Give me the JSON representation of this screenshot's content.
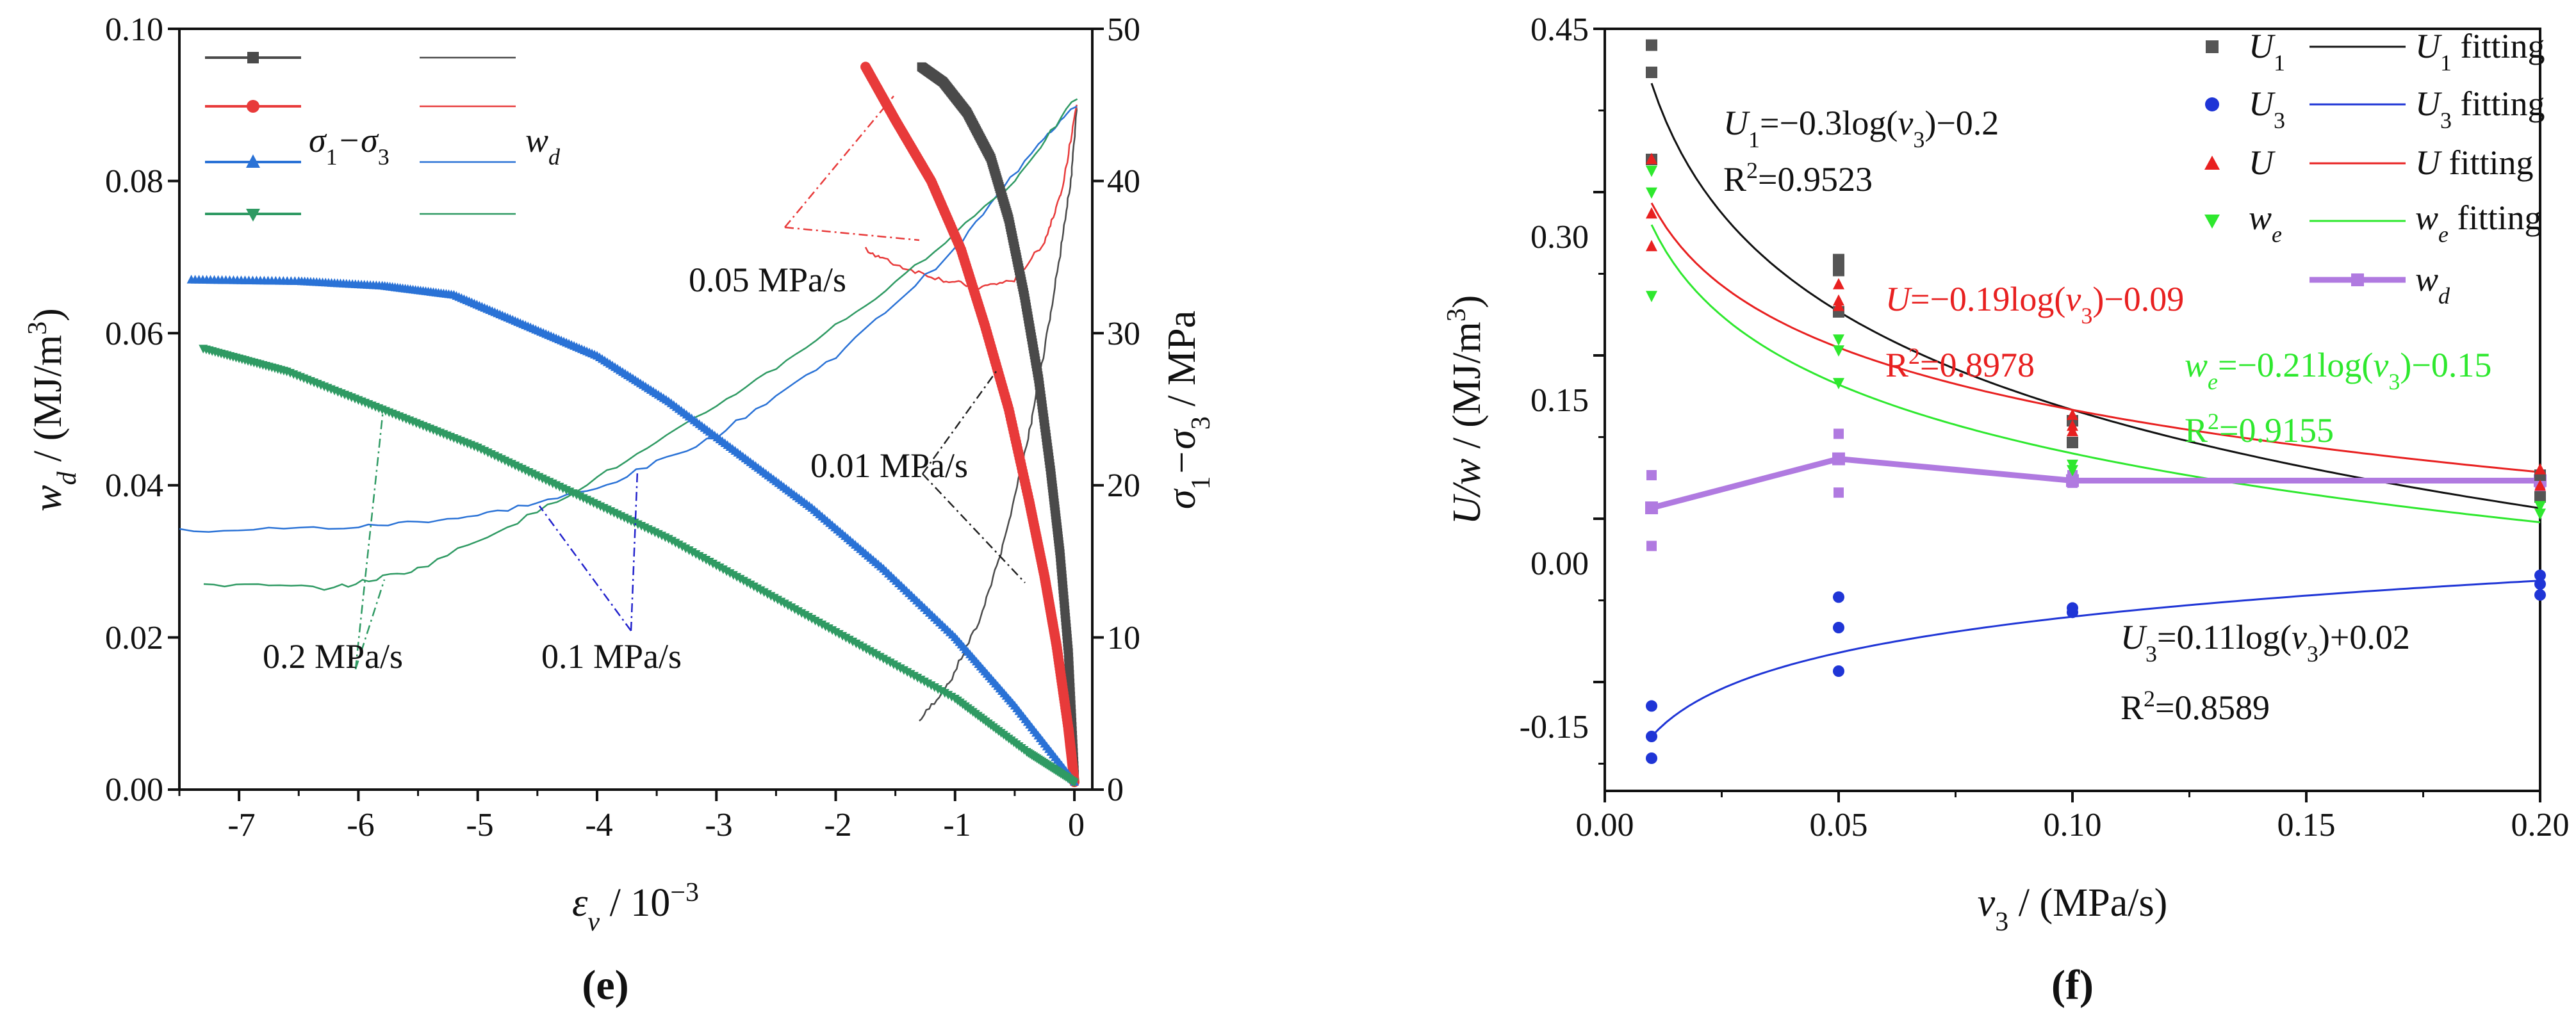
{
  "chart_data": [
    {
      "panel_label": "(e)",
      "type": "scatter",
      "xlabel": "εv / 10−3",
      "xlabel_parts": {
        "symbol": "ε",
        "sub": "v",
        "unit": " / 10",
        "sup": "−3"
      },
      "ylabel_left": "wd / (MJ/m3)",
      "ylabel_left_parts": {
        "symbol": "w",
        "sub": "d",
        "unit": " / (MJ/m",
        "sup": "3",
        "close": ")"
      },
      "ylabel_right": "σ1−σ3 / MPa",
      "ylabel_right_parts": {
        "s1": "σ",
        "sub1": "1",
        "minus": "−σ",
        "sub3": "3",
        "unit": " / MPa"
      },
      "xlim": [
        -7.5,
        0.15
      ],
      "ylim_left": [
        0,
        0.1
      ],
      "ylim_right": [
        0,
        50
      ],
      "xticks": [
        "-7",
        "-6",
        "-5",
        "-4",
        "-3",
        "-2",
        "-1",
        "0"
      ],
      "yticks_left": [
        "0.00",
        "0.02",
        "0.04",
        "0.06",
        "0.08",
        "0.10"
      ],
      "yticks_right": [
        "0",
        "10",
        "20",
        "30",
        "40",
        "50"
      ],
      "legend": {
        "placement": "top-left",
        "col1_label_parts": {
          "s1": "σ",
          "sub1": "1",
          "minus": "−σ",
          "sub3": "3"
        },
        "col2_label_parts": {
          "symbol": "w",
          "sub": "d"
        }
      },
      "annotations": [
        "0.05 MPa/s",
        "0.01 MPa/s",
        "0.2 MPa/s",
        "0.1 MPa/s"
      ],
      "series": [
        {
          "rate": "0.01 MPa/s",
          "color": "#4a4a4a",
          "marker": "square",
          "axis": "right",
          "points": [
            [
              -1.28,
              47.5
            ],
            [
              -1.1,
              46.5
            ],
            [
              -0.9,
              44.5
            ],
            [
              -0.7,
              41.5
            ],
            [
              -0.55,
              37.5
            ],
            [
              -0.42,
              32.5
            ],
            [
              -0.3,
              27
            ],
            [
              -0.2,
              21
            ],
            [
              -0.12,
              15.5
            ],
            [
              -0.05,
              9
            ],
            [
              0.0,
              1
            ]
          ]
        },
        {
          "rate": "0.05 MPa/s",
          "color": "#e83a3a",
          "marker": "circle",
          "axis": "right",
          "points": [
            [
              -1.75,
              47.5
            ],
            [
              -1.5,
              44
            ],
            [
              -1.2,
              40
            ],
            [
              -0.95,
              35.5
            ],
            [
              -0.75,
              30.5
            ],
            [
              -0.55,
              25
            ],
            [
              -0.38,
              19
            ],
            [
              -0.25,
              14
            ],
            [
              -0.15,
              9.5
            ],
            [
              -0.05,
              4
            ],
            [
              0.0,
              0.5
            ]
          ]
        },
        {
          "rate": "0.1 MPa/s",
          "color": "#2a72d6",
          "marker": "triangle-up",
          "axis": "right",
          "points": [
            [
              -7.4,
              33.5
            ],
            [
              -6.5,
              33.4
            ],
            [
              -5.8,
              33.1
            ],
            [
              -5.2,
              32.5
            ],
            [
              -4.6,
              30.5
            ],
            [
              -4.0,
              28.5
            ],
            [
              -3.4,
              25.5
            ],
            [
              -2.8,
              22
            ],
            [
              -2.2,
              18.5
            ],
            [
              -1.6,
              14.5
            ],
            [
              -1.0,
              10
            ],
            [
              -0.5,
              5.5
            ],
            [
              0.0,
              0.5
            ]
          ]
        },
        {
          "rate": "0.2 MPa/s",
          "color": "#2f9a63",
          "marker": "triangle-down",
          "axis": "right",
          "points": [
            [
              -7.3,
              29
            ],
            [
              -6.6,
              27.5
            ],
            [
              -5.8,
              25
            ],
            [
              -5.0,
              22.5
            ],
            [
              -4.2,
              19.5
            ],
            [
              -3.4,
              16.5
            ],
            [
              -2.6,
              13
            ],
            [
              -1.8,
              9.5
            ],
            [
              -1.0,
              6
            ],
            [
              -0.4,
              2.5
            ],
            [
              0.0,
              0.5
            ]
          ]
        },
        {
          "rate": "0.01 MPa/s",
          "color": "#4a4a4a",
          "marker": "none",
          "axis": "left",
          "points": [
            [
              -1.3,
              0.009
            ],
            [
              -1.05,
              0.014
            ],
            [
              -0.8,
              0.022
            ],
            [
              -0.6,
              0.032
            ],
            [
              -0.4,
              0.045
            ],
            [
              -0.25,
              0.058
            ],
            [
              -0.12,
              0.07
            ],
            [
              -0.03,
              0.08
            ],
            [
              0.02,
              0.09
            ]
          ]
        },
        {
          "rate": "0.05 MPa/s",
          "color": "#e83a3a",
          "marker": "none",
          "axis": "left",
          "points": [
            [
              -1.75,
              0.071
            ],
            [
              -1.5,
              0.069
            ],
            [
              -1.1,
              0.067
            ],
            [
              -0.8,
              0.066
            ],
            [
              -0.5,
              0.067
            ],
            [
              -0.25,
              0.072
            ],
            [
              -0.1,
              0.079
            ],
            [
              0.02,
              0.09
            ]
          ]
        },
        {
          "rate": "0.1 MPa/s",
          "color": "#2a72d6",
          "marker": "none",
          "axis": "left",
          "points": [
            [
              -7.5,
              0.034
            ],
            [
              -6.0,
              0.0345
            ],
            [
              -5.0,
              0.036
            ],
            [
              -4.0,
              0.0395
            ],
            [
              -3.0,
              0.0465
            ],
            [
              -2.0,
              0.057
            ],
            [
              -1.0,
              0.071
            ],
            [
              -0.3,
              0.085
            ],
            [
              0.02,
              0.09
            ]
          ]
        },
        {
          "rate": "0.2 MPa/s",
          "color": "#2f9a63",
          "marker": "none",
          "axis": "left",
          "points": [
            [
              -7.3,
              0.027
            ],
            [
              -6.2,
              0.0265
            ],
            [
              -5.5,
              0.029
            ],
            [
              -4.5,
              0.0365
            ],
            [
              -3.5,
              0.0455
            ],
            [
              -2.5,
              0.0555
            ],
            [
              -1.5,
              0.0665
            ],
            [
              -0.5,
              0.08
            ],
            [
              0.02,
              0.091
            ]
          ]
        }
      ]
    },
    {
      "panel_label": "(f)",
      "type": "scatter",
      "xlabel": "v3 / (MPa/s)",
      "xlabel_parts": {
        "symbol": "v",
        "sub": "3",
        "unit": " / (MPa/s)"
      },
      "ylabel": "U/w / (MJ/m3)",
      "ylabel_parts": {
        "symbol": "U/w",
        "unit": " / (MJ/m",
        "sup": "3",
        "close": ")"
      },
      "xlim": [
        0.0,
        0.2
      ],
      "ylim": [
        -0.25,
        0.45
      ],
      "xticks": [
        "0.00",
        "0.05",
        "0.10",
        "0.15",
        "0.20"
      ],
      "yticks": [
        "-0.15",
        "0.00",
        "0.15",
        "0.30",
        "0.45"
      ],
      "legend": {
        "placement": "top-right",
        "entries": [
          {
            "key": "U1",
            "label_parts": {
              "symbol": "U",
              "sub": "1"
            },
            "fit_parts": {
              "symbol": "U",
              "sub": "1",
              "text": " fitting"
            },
            "color": "#555555",
            "marker": "square"
          },
          {
            "key": "U3",
            "label_parts": {
              "symbol": "U",
              "sub": "3"
            },
            "fit_parts": {
              "symbol": "U",
              "sub": "3",
              "text": " fitting"
            },
            "color": "#1f35d6",
            "marker": "circle"
          },
          {
            "key": "U",
            "label_parts": {
              "symbol": "U",
              "sub": ""
            },
            "fit_parts": {
              "symbol": "U",
              "sub": "",
              "text": " fitting"
            },
            "color": "#e82020",
            "marker": "triangle-up"
          },
          {
            "key": "we",
            "label_parts": {
              "symbol": "w",
              "sub": "e"
            },
            "fit_parts": {
              "symbol": "w",
              "sub": "e",
              "text": " fitting"
            },
            "color": "#2ee82e",
            "marker": "triangle-down"
          },
          {
            "key": "wd",
            "label_parts": {
              "symbol": "w",
              "sub": "d"
            },
            "color": "#b07ae0",
            "marker": "square-line"
          }
        ]
      },
      "equations": [
        {
          "key": "U1",
          "color": "#111111",
          "parts": {
            "pre": "U",
            "sub": "1",
            "mid": "=−0.3log(",
            "v": "v",
            "vsub": "3",
            "post": ")−0.2"
          },
          "r2": {
            "r": "R",
            "sup": "2",
            "val": "=0.9523"
          }
        },
        {
          "key": "U",
          "color": "#e82020",
          "parts": {
            "pre": "U",
            "sub": "",
            "mid": "=−0.19log(",
            "v": "v",
            "vsub": "3",
            "post": ")−0.09"
          },
          "r2": {
            "r": "R",
            "sup": "2",
            "val": "=0.8978"
          }
        },
        {
          "key": "we",
          "color": "#2ee82e",
          "parts": {
            "pre": "w",
            "sub": "e",
            "mid": "=−0.21log(",
            "v": "v",
            "vsub": "3",
            "post": ")−0.15"
          },
          "r2": {
            "r": "R",
            "sup": "2",
            "val": "=0.9155"
          }
        },
        {
          "key": "U3",
          "color": "#111111",
          "parts": {
            "pre": "U",
            "sub": "3",
            "mid": "=0.11log(",
            "v": "v",
            "vsub": "3",
            "post": ")+0.02"
          },
          "r2": {
            "r": "R",
            "sup": "2",
            "val": "=0.8589"
          }
        }
      ],
      "data": {
        "U1": [
          [
            0.01,
            0.435
          ],
          [
            0.01,
            0.41
          ],
          [
            0.01,
            0.33
          ],
          [
            0.05,
            0.238
          ],
          [
            0.05,
            0.228
          ],
          [
            0.05,
            0.19
          ],
          [
            0.1,
            0.09
          ],
          [
            0.1,
            0.07
          ],
          [
            0.2,
            0.04
          ],
          [
            0.2,
            0.02
          ]
        ],
        "U3": [
          [
            0.01,
            -0.172
          ],
          [
            0.01,
            -0.2
          ],
          [
            0.01,
            -0.22
          ],
          [
            0.05,
            -0.072
          ],
          [
            0.05,
            -0.1
          ],
          [
            0.05,
            -0.14
          ],
          [
            0.1,
            -0.082
          ],
          [
            0.1,
            -0.086
          ],
          [
            0.2,
            -0.052
          ],
          [
            0.2,
            -0.06
          ],
          [
            0.2,
            -0.07
          ]
        ],
        "U": [
          [
            0.01,
            0.33
          ],
          [
            0.01,
            0.28
          ],
          [
            0.01,
            0.25
          ],
          [
            0.05,
            0.215
          ],
          [
            0.05,
            0.2
          ],
          [
            0.05,
            0.195
          ],
          [
            0.1,
            0.095
          ],
          [
            0.1,
            0.085
          ],
          [
            0.1,
            0.08
          ],
          [
            0.2,
            0.045
          ],
          [
            0.2,
            0.03
          ]
        ],
        "we": [
          [
            0.01,
            0.32
          ],
          [
            0.01,
            0.3
          ],
          [
            0.01,
            0.205
          ],
          [
            0.05,
            0.165
          ],
          [
            0.05,
            0.155
          ],
          [
            0.05,
            0.125
          ],
          [
            0.1,
            0.05
          ],
          [
            0.1,
            0.045
          ],
          [
            0.2,
            0.012
          ],
          [
            0.2,
            0.005
          ]
        ],
        "wd_points": [
          [
            0.01,
            0.04
          ],
          [
            0.01,
            -0.025
          ],
          [
            0.05,
            0.078
          ],
          [
            0.05,
            0.024
          ],
          [
            0.1,
            0.04
          ],
          [
            0.1,
            0.033
          ],
          [
            0.2,
            0.04
          ],
          [
            0.2,
            0.03
          ]
        ],
        "wd_line": [
          [
            0.01,
            0.01
          ],
          [
            0.05,
            0.055
          ],
          [
            0.1,
            0.035
          ],
          [
            0.2,
            0.035
          ]
        ]
      },
      "fits": {
        "U1": {
          "a": -0.3,
          "b": -0.2
        },
        "U3": {
          "a": 0.11,
          "b": 0.02
        },
        "U": {
          "a": -0.19,
          "b": -0.09
        },
        "we": {
          "a": -0.21,
          "b": -0.15
        }
      }
    }
  ]
}
